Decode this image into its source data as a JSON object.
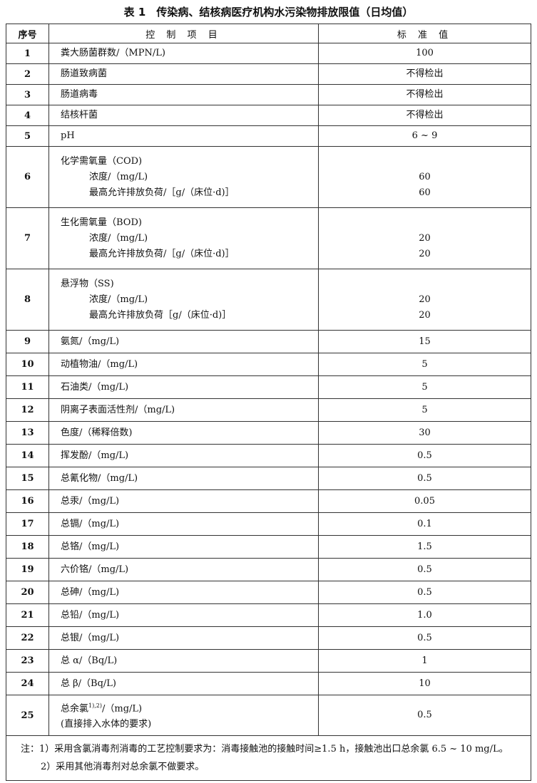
{
  "title": "表 1　传染病、结核病医疗机构水污染物排放限值（日均值）",
  "headers": {
    "no": "序号",
    "item": "控 制 项 目",
    "value": "标 准 值"
  },
  "rows": [
    {
      "no": "1",
      "item": "粪大肠菌群数/（MPN/L)",
      "value": "100"
    },
    {
      "no": "2",
      "item": "肠道致病菌",
      "value": "不得检出"
    },
    {
      "no": "3",
      "item": "肠道病毒",
      "value": "不得检出"
    },
    {
      "no": "4",
      "item": "结核杆菌",
      "value": "不得检出"
    },
    {
      "no": "5",
      "item": "pH",
      "value": "6 ~ 9"
    },
    {
      "no": "6",
      "item": "化学需氧量（COD)",
      "sub1": "浓度/（mg/L)",
      "sub2": "最高允许排放负荷/［g/（床位·d)］",
      "val1": "60",
      "val2": "60"
    },
    {
      "no": "7",
      "item": "生化需氧量（BOD)",
      "sub1": "浓度/（mg/L)",
      "sub2": "最高允许排放负荷/［g/（床位·d)］",
      "val1": "20",
      "val2": "20"
    },
    {
      "no": "8",
      "item": "悬浮物（SS)",
      "sub1": "浓度/（mg/L)",
      "sub2": "最高允许排放负荷［g/（床位·d)］",
      "val1": "20",
      "val2": "20"
    },
    {
      "no": "9",
      "item": "氨氮/（mg/L)",
      "value": "15"
    },
    {
      "no": "10",
      "item": "动植物油/（mg/L)",
      "value": "5"
    },
    {
      "no": "11",
      "item": "石油类/（mg/L)",
      "value": "5"
    },
    {
      "no": "12",
      "item": "阴离子表面活性剂/（mg/L)",
      "value": "5"
    },
    {
      "no": "13",
      "item": "色度/（稀释倍数)",
      "value": "30"
    },
    {
      "no": "14",
      "item": "挥发酚/（mg/L)",
      "value": "0.5"
    },
    {
      "no": "15",
      "item": "总氰化物/（mg/L)",
      "value": "0.5"
    },
    {
      "no": "16",
      "item": "总汞/（mg/L)",
      "value": "0.05"
    },
    {
      "no": "17",
      "item": "总镉/（mg/L)",
      "value": "0.1"
    },
    {
      "no": "18",
      "item": "总铬/（mg/L)",
      "value": "1.5"
    },
    {
      "no": "19",
      "item": "六价铬/（mg/L)",
      "value": "0.5"
    },
    {
      "no": "20",
      "item": "总砷/（mg/L)",
      "value": "0.5"
    },
    {
      "no": "21",
      "item": "总铅/（mg/L)",
      "value": "1.0"
    },
    {
      "no": "22",
      "item": "总银/（mg/L)",
      "value": "0.5"
    },
    {
      "no": "23",
      "item": "总 α/（Bq/L)",
      "value": "1"
    },
    {
      "no": "24",
      "item": "总 β/（Bq/L)",
      "value": "10"
    },
    {
      "no": "25",
      "item": "总余氯",
      "sup": "1),2)",
      "item_tail": "/（mg/L)",
      "sub1": "(直接排入水体的要求)",
      "value": "0.5"
    }
  ],
  "notes": [
    "注：1）采用含氯消毒剂消毒的工艺控制要求为：消毒接触池的接触时间≥1.5 h，接触池出口总余氯 6.5 ~ 10 mg/L。",
    "2）采用其他消毒剂对总余氯不做要求。"
  ]
}
